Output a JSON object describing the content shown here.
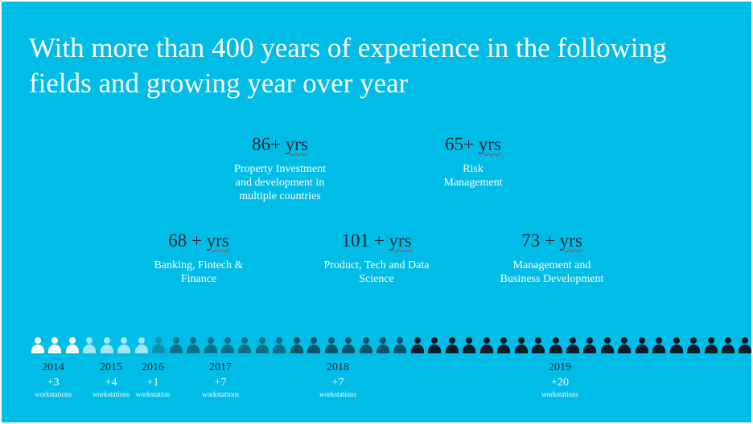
{
  "title": "With more than 400 years of experience in the following fields and growing year over year",
  "stats": [
    {
      "value": "86+",
      "unit": "yrs",
      "desc": [
        "Property Investment",
        "and development in",
        "multiple countries"
      ]
    },
    {
      "value": "65+",
      "unit": "yrs",
      "desc": [
        "Risk",
        "Management"
      ]
    },
    {
      "value": "68 +",
      "unit": "yrs",
      "desc": [
        "Banking, Fintech &",
        "Finance"
      ]
    },
    {
      "value": "101 +",
      "unit": "yrs",
      "desc": [
        "Product, Tech and Data",
        "Science"
      ]
    },
    {
      "value": "73 +",
      "unit": "yrs",
      "desc": [
        "Management and",
        "Business Development"
      ]
    }
  ],
  "timeline": [
    {
      "year": "2014",
      "count": "+3",
      "label": "workstations",
      "icons": 3,
      "color": "#ffffff"
    },
    {
      "year": "2015",
      "count": "+4",
      "label": "workstations",
      "icons": 4,
      "color": "#a4e6f4"
    },
    {
      "year": "2016",
      "count": "+1",
      "label": "workstation",
      "icons": 1,
      "color": "#0b91ac"
    },
    {
      "year": "2017",
      "count": "+7",
      "label": "workstations",
      "icons": 7,
      "color": "#0a6f86"
    },
    {
      "year": "2018",
      "count": "+7",
      "label": "workstations",
      "icons": 7,
      "color": "#0a5468"
    },
    {
      "year": "2019",
      "count": "+20",
      "label": "workstations",
      "icons": 20,
      "color": "#0d1b26"
    }
  ]
}
